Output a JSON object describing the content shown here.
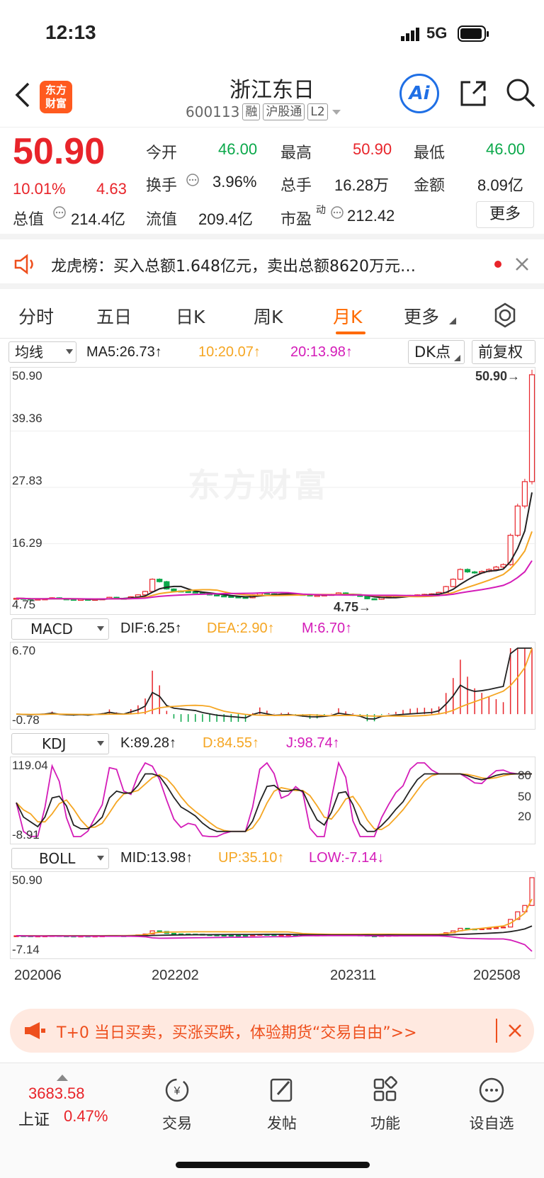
{
  "status_bar": {
    "time": "12:13",
    "network": "5G"
  },
  "header": {
    "logo_text": "东方\n财富",
    "title": "浙江东日",
    "code": "600113",
    "tags": [
      "融",
      "沪股通",
      "L2"
    ],
    "ai_label": "Ai"
  },
  "quote": {
    "price": "50.90",
    "change_pct": "10.01%",
    "change": "4.63",
    "fields": [
      {
        "label": "今开",
        "value": "46.00",
        "color": "green"
      },
      {
        "label": "最高",
        "value": "50.90",
        "color": "red"
      },
      {
        "label": "最低",
        "value": "46.00",
        "color": "green"
      },
      {
        "label": "换手",
        "value": "3.96%",
        "color": "black"
      },
      {
        "label": "总手",
        "value": "16.28万",
        "color": "black"
      },
      {
        "label": "金额",
        "value": "8.09亿",
        "color": "black"
      },
      {
        "label": "总值",
        "value": "214.4亿",
        "color": "black"
      },
      {
        "label": "流值",
        "value": "209.4亿",
        "color": "black"
      },
      {
        "label": "市盈",
        "value": "212.42",
        "color": "black"
      }
    ],
    "pe_superscript": "动",
    "more_label": "更多"
  },
  "notice": {
    "text": "龙虎榜：买入总额1.648亿元，卖出总额8620万元…"
  },
  "tabs": [
    {
      "label": "分时"
    },
    {
      "label": "五日"
    },
    {
      "label": "日K"
    },
    {
      "label": "周K"
    },
    {
      "label": "月K"
    },
    {
      "label": "更多"
    }
  ],
  "main_chart": {
    "selector": "均线",
    "ma5": "MA5:26.73↑",
    "ma10": "10:20.07↑",
    "ma20": "20:13.98↑",
    "dk_label": "DK点",
    "adjust_label": "前复权",
    "y_ticks": [
      "50.90",
      "39.36",
      "27.83",
      "16.29",
      "4.75"
    ],
    "max_label": "50.90→",
    "min_label": "4.75→",
    "watermark": "东方财富"
  },
  "macd": {
    "selector": "MACD",
    "dif": "DIF:6.25↑",
    "dea": "DEA:2.90↑",
    "m": "M:6.70↑",
    "y_max": "6.70",
    "y_min": "-0.78"
  },
  "kdj": {
    "selector": "KDJ",
    "k": "K:89.28↑",
    "d": "D:84.55↑",
    "j": "J:98.74↑",
    "y_max": "119.04",
    "y_min": "-8.91",
    "levels": [
      "80",
      "50",
      "20"
    ]
  },
  "boll": {
    "selector": "BOLL",
    "mid": "MID:13.98↑",
    "up": "UP:35.10↑",
    "low": "LOW:-7.14↓",
    "y_max": "50.90",
    "y_min": "-7.14"
  },
  "x_axis": [
    "202006",
    "202202",
    "202311",
    "202508"
  ],
  "chart_data": {
    "type": "candlestick",
    "close": [
      5.1,
      5.0,
      4.9,
      4.95,
      5.0,
      5.2,
      5.0,
      4.9,
      4.85,
      4.9,
      4.8,
      4.9,
      5.0,
      5.3,
      5.1,
      5.0,
      5.4,
      5.8,
      6.5,
      9.0,
      8.5,
      7.0,
      6.6,
      6.5,
      6.4,
      6.3,
      6.0,
      5.8,
      5.6,
      5.5,
      5.4,
      5.3,
      5.2,
      5.8,
      6.2,
      6.0,
      5.8,
      5.9,
      6.0,
      5.9,
      5.8,
      5.7,
      5.7,
      5.8,
      5.9,
      6.2,
      5.9,
      5.7,
      5.5,
      5.0,
      4.9,
      5.3,
      5.4,
      5.5,
      5.6,
      5.7,
      5.8,
      5.9,
      6.0,
      6.3,
      7.5,
      9.0,
      11.0,
      10.5,
      10.3,
      10.6,
      11.0,
      11.5,
      12.0,
      18.0,
      24.0,
      29.0,
      50.9
    ]
  },
  "promo": {
    "text": "T+0 当日买卖，买涨买跌，体验期货“交易自由”>>"
  },
  "bottom_nav": {
    "index_value": "3683.58",
    "index_name": "上证",
    "index_change": "0.47%",
    "items": [
      {
        "label": "交易"
      },
      {
        "label": "发帖"
      },
      {
        "label": "功能"
      },
      {
        "label": "设自选"
      }
    ]
  }
}
